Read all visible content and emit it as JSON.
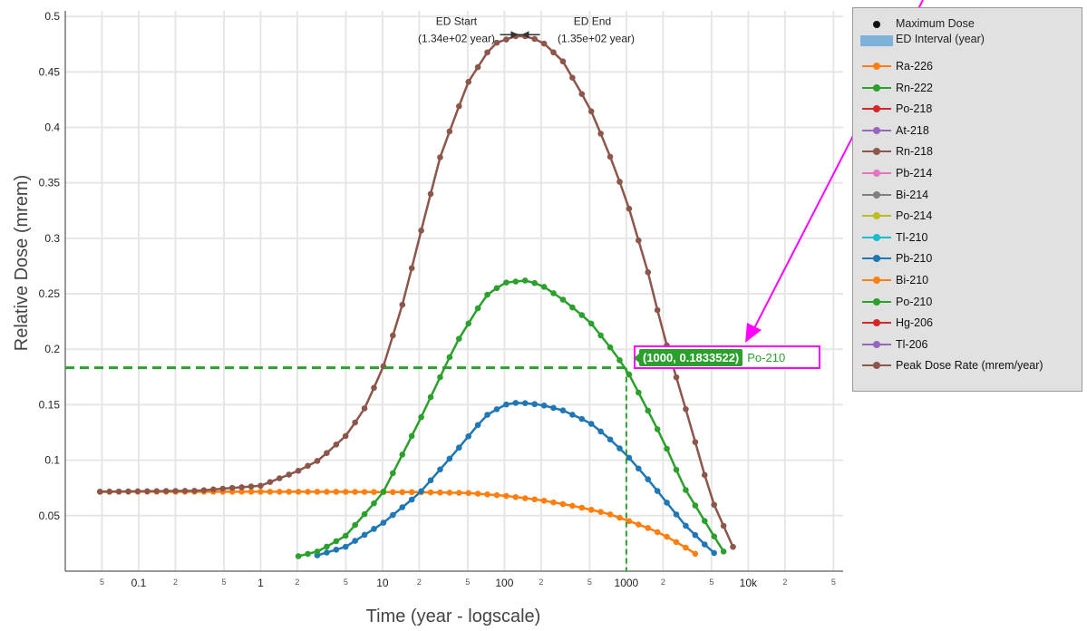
{
  "chart_data": {
    "type": "line",
    "xscale": "log",
    "xlabel": "Time (year - logscale)",
    "ylabel": "Relative Dose (mrem)",
    "xlim": [
      0.025,
      60000
    ],
    "ylim": [
      0.0,
      0.505
    ],
    "y_ticks": [
      "0.05",
      "0.1",
      "0.15",
      "0.2",
      "0.25",
      "0.3",
      "0.35",
      "0.4",
      "0.45",
      "0.5"
    ],
    "x_major_ticks": [
      {
        "value": 0.1,
        "label": "0.1"
      },
      {
        "value": 1,
        "label": "1"
      },
      {
        "value": 10,
        "label": "10"
      },
      {
        "value": 100,
        "label": "100"
      },
      {
        "value": 1000,
        "label": "1000"
      },
      {
        "value": 10000,
        "label": "10k"
      }
    ],
    "x_minor_ticks": [
      {
        "value": 0.05,
        "label": "5"
      },
      {
        "value": 0.2,
        "label": "2"
      },
      {
        "value": 0.5,
        "label": "5"
      },
      {
        "value": 2,
        "label": "2"
      },
      {
        "value": 5,
        "label": "5"
      },
      {
        "value": 20,
        "label": "2"
      },
      {
        "value": 50,
        "label": "5"
      },
      {
        "value": 200,
        "label": "2"
      },
      {
        "value": 500,
        "label": "5"
      },
      {
        "value": 2000,
        "label": "2"
      },
      {
        "value": 5000,
        "label": "5"
      },
      {
        "value": 20000,
        "label": "2"
      },
      {
        "value": 50000,
        "label": "5"
      }
    ],
    "grid": true,
    "legend_position": "right",
    "ed_interval": {
      "start": 134,
      "end": 135,
      "y": 0.4835,
      "start_label": "ED Start",
      "start_value": "(1.34e+02 year)",
      "end_label": "ED End",
      "end_value": "(1.35e+02 year)"
    },
    "series": [
      {
        "name": "Ra-226",
        "color": "#ff7f0e",
        "points": [
          [
            0.045,
            0.0715
          ],
          [
            0.1,
            0.0716
          ],
          [
            0.5,
            0.0716
          ],
          [
            1,
            0.0716
          ],
          [
            5,
            0.0715
          ],
          [
            10,
            0.0713
          ],
          [
            20,
            0.0712
          ],
          [
            50,
            0.0705
          ],
          [
            100,
            0.068
          ],
          [
            200,
            0.064
          ],
          [
            400,
            0.058
          ],
          [
            700,
            0.052
          ],
          [
            1000,
            0.046
          ],
          [
            1500,
            0.039
          ],
          [
            2000,
            0.033
          ],
          [
            3000,
            0.022
          ],
          [
            4000,
            0.013
          ]
        ]
      },
      {
        "name": "Pb-210",
        "color": "#1f77b4",
        "points": [
          [
            2.5,
            0.012
          ],
          [
            5,
            0.022
          ],
          [
            10,
            0.043
          ],
          [
            20,
            0.07
          ],
          [
            40,
            0.108
          ],
          [
            70,
            0.14
          ],
          [
            100,
            0.15
          ],
          [
            130,
            0.152
          ],
          [
            200,
            0.15
          ],
          [
            300,
            0.145
          ],
          [
            500,
            0.134
          ],
          [
            700,
            0.121
          ],
          [
            1000,
            0.105
          ],
          [
            1500,
            0.083
          ],
          [
            2000,
            0.066
          ],
          [
            3000,
            0.042
          ],
          [
            5000,
            0.018
          ],
          [
            6000,
            0.012
          ]
        ]
      },
      {
        "name": "Po-210",
        "color": "#2ca02c",
        "points": [
          [
            1.8,
            0.012
          ],
          [
            3,
            0.018
          ],
          [
            5,
            0.032
          ],
          [
            10,
            0.07
          ],
          [
            20,
            0.135
          ],
          [
            40,
            0.205
          ],
          [
            70,
            0.248
          ],
          [
            100,
            0.26
          ],
          [
            150,
            0.262
          ],
          [
            200,
            0.258
          ],
          [
            300,
            0.245
          ],
          [
            500,
            0.225
          ],
          [
            700,
            0.205
          ],
          [
            1000,
            0.182
          ],
          [
            1500,
            0.145
          ],
          [
            2000,
            0.118
          ],
          [
            3000,
            0.075
          ],
          [
            5000,
            0.035
          ],
          [
            6500,
            0.015
          ]
        ]
      },
      {
        "name": "Peak Dose Rate (mrem/year)",
        "color": "#8c564b",
        "points": [
          [
            0.045,
            0.0716
          ],
          [
            0.1,
            0.072
          ],
          [
            0.3,
            0.0725
          ],
          [
            1,
            0.077
          ],
          [
            2,
            0.09
          ],
          [
            3,
            0.1
          ],
          [
            5,
            0.122
          ],
          [
            7,
            0.145
          ],
          [
            10,
            0.182
          ],
          [
            15,
            0.245
          ],
          [
            20,
            0.3
          ],
          [
            30,
            0.375
          ],
          [
            50,
            0.44
          ],
          [
            80,
            0.475
          ],
          [
            134,
            0.4835
          ],
          [
            200,
            0.478
          ],
          [
            300,
            0.46
          ],
          [
            500,
            0.418
          ],
          [
            700,
            0.38
          ],
          [
            1000,
            0.335
          ],
          [
            1500,
            0.27
          ],
          [
            2000,
            0.215
          ],
          [
            3000,
            0.15
          ],
          [
            5000,
            0.065
          ],
          [
            8000,
            0.015
          ]
        ]
      }
    ],
    "crosshair": {
      "x": 1000,
      "y": 0.1833522,
      "series": "Po-210",
      "color": "#2ca02c"
    }
  },
  "legend": {
    "max_dose_label": "Maximum Dose",
    "ed_interval_label": "ED Interval (year)",
    "items": [
      {
        "label": "Ra-226",
        "color": "#ff7f0e"
      },
      {
        "label": "Rn-222",
        "color": "#2ca02c"
      },
      {
        "label": "Po-218",
        "color": "#d62728"
      },
      {
        "label": "At-218",
        "color": "#9467bd"
      },
      {
        "label": "Rn-218",
        "color": "#8c564b"
      },
      {
        "label": "Pb-214",
        "color": "#e377c2"
      },
      {
        "label": "Bi-214",
        "color": "#7f7f7f"
      },
      {
        "label": "Po-214",
        "color": "#bcbd22"
      },
      {
        "label": "Tl-210",
        "color": "#17becf"
      },
      {
        "label": "Pb-210",
        "color": "#1f77b4"
      },
      {
        "label": "Bi-210",
        "color": "#ff7f0e"
      },
      {
        "label": "Po-210",
        "color": "#2ca02c"
      },
      {
        "label": "Hg-206",
        "color": "#d62728"
      },
      {
        "label": "Tl-206",
        "color": "#9467bd"
      },
      {
        "label": "Peak Dose Rate (mrem/year)",
        "color": "#8c564b"
      }
    ]
  },
  "tooltip": {
    "value_text": "(1000, 0.1833522)",
    "series_text": "Po-210"
  },
  "annotation": {
    "arrow_color": "#ff00ff"
  }
}
